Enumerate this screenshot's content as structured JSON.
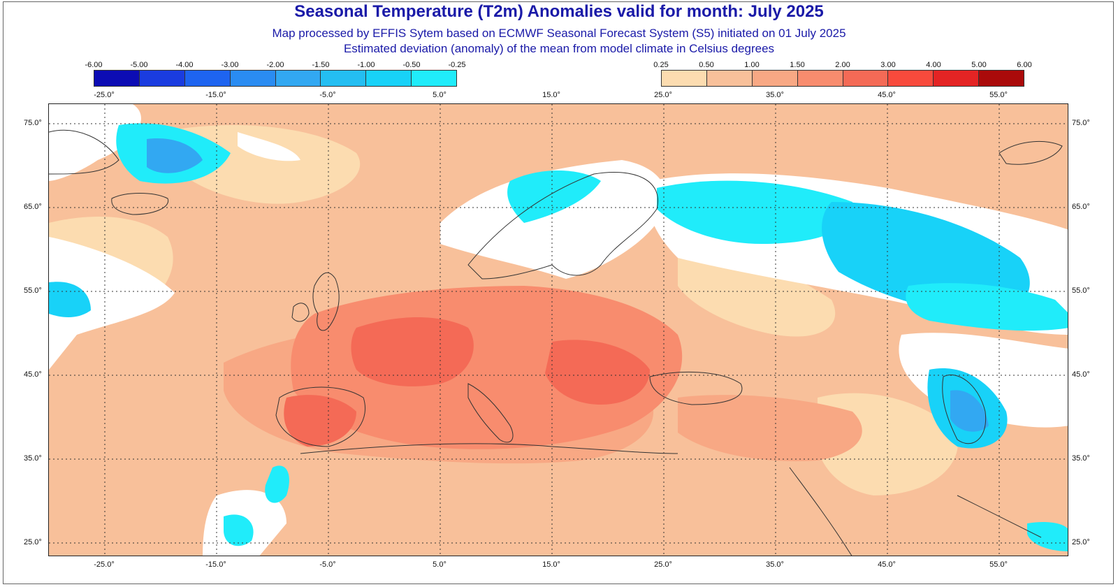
{
  "title": "Seasonal Temperature (T2m) Anomalies valid for month: July 2025",
  "subtitle1": "Map processed by EFFIS Sytem based on ECMWF Seasonal Forecast System (S5) initiated on 01 July 2025",
  "subtitle2": "Estimated deviation (anomaly) of the mean from model climate in Celsius degrees",
  "legend_negative": {
    "labels": [
      "-6.00",
      "-5.00",
      "-4.00",
      "-3.00",
      "-2.00",
      "-1.50",
      "-1.00",
      "-0.50",
      "-0.25"
    ],
    "colors": [
      "#0c0cb4",
      "#1a3ce0",
      "#1e64f0",
      "#2a8cf2",
      "#32a8f2",
      "#24bef2",
      "#18d2f8",
      "#20ecfa"
    ]
  },
  "legend_positive": {
    "labels": [
      "0.25",
      "0.50",
      "1.00",
      "1.50",
      "2.00",
      "3.00",
      "4.00",
      "5.00",
      "6.00"
    ],
    "colors": [
      "#fcdcb0",
      "#f8c09a",
      "#f8a884",
      "#f88c6e",
      "#f46a56",
      "#f84a3c",
      "#e42424",
      "#aa0a0a"
    ]
  },
  "lon_labels": [
    "-25.0°",
    "-15.0°",
    "-5.0°",
    "5.0°",
    "15.0°",
    "25.0°",
    "35.0°",
    "45.0°",
    "55.0°"
  ],
  "lat_labels": [
    "75.0°",
    "65.0°",
    "55.0°",
    "45.0°",
    "35.0°",
    "25.0°"
  ],
  "palette": {
    "ocean_base": "#f8c09a",
    "no_anomaly": "#ffffff",
    "cool_1": "#20ecfa",
    "cool_2": "#18d2f8",
    "cool_3": "#32a8f2",
    "warm_1": "#fcdcb0",
    "warm_2": "#f8a884",
    "warm_3": "#f88c6e",
    "warm_4": "#f46a56"
  }
}
